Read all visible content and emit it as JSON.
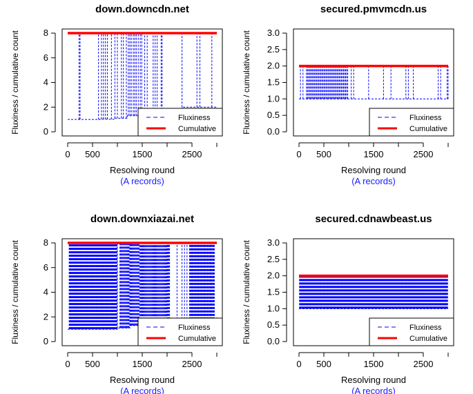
{
  "colors": {
    "fluxiness": "#0000ff",
    "cumulative": "#ff0000",
    "sublabel": "#1a1aff"
  },
  "legend": {
    "fluxiness": "Fluxiness",
    "cumulative": "Cumulative",
    "position": "bottom-right"
  },
  "chart_data": [
    {
      "type": "line",
      "title": "down.downcdn.net",
      "xlabel": "Resolving round",
      "xlabel_sub": "(A records)",
      "ylabel": "Fluxiness / cumulative count",
      "xlim": [
        0,
        3000
      ],
      "ylim": [
        0,
        8
      ],
      "xticks": [
        0,
        500,
        1500,
        2500
      ],
      "xtick_labels": [
        "0",
        "500",
        "1500",
        "2500"
      ],
      "yticks": [
        0,
        2,
        4,
        6,
        8
      ],
      "ytick_labels": [
        "0",
        "2",
        "4",
        "6",
        "8"
      ],
      "series": [
        {
          "name": "Fluxiness",
          "style": "dashed",
          "baseline_steps": [
            [
              0,
              1
            ],
            [
              650,
              1.02
            ],
            [
              950,
              1.1
            ],
            [
              1200,
              1.3
            ],
            [
              1500,
              1.5
            ],
            [
              2000,
              1.8
            ],
            [
              2300,
              2.0
            ],
            [
              3000,
              2.0
            ]
          ],
          "spike_x": [
            230,
            250,
            620,
            680,
            720,
            760,
            800,
            880,
            950,
            1000,
            1080,
            1120,
            1180,
            1220,
            1250,
            1280,
            1320,
            1350,
            1380,
            1420,
            1460,
            1490,
            1550,
            1600,
            1720,
            1760,
            1800,
            1880,
            1900,
            2300,
            2600,
            2660,
            2900
          ],
          "spike_to": 8
        },
        {
          "name": "Cumulative",
          "values_x": [
            0,
            3000
          ],
          "values_y": [
            8,
            8
          ]
        }
      ]
    },
    {
      "type": "line",
      "title": "secured.pmvmcdn.us",
      "xlabel": "Resolving round",
      "xlabel_sub": "(A records)",
      "ylabel": "Fluxiness / cumulative count",
      "xlim": [
        0,
        3000
      ],
      "ylim": [
        0,
        3
      ],
      "xticks": [
        0,
        500,
        1500,
        2500
      ],
      "xtick_labels": [
        "0",
        "500",
        "1500",
        "2500"
      ],
      "yticks": [
        0,
        0.5,
        1,
        1.5,
        2,
        2.5,
        3
      ],
      "ytick_labels": [
        "0.0",
        "0.5",
        "1.0",
        "1.5",
        "2.0",
        "2.5",
        "3.0"
      ],
      "series": [
        {
          "name": "Fluxiness",
          "style": "dashed",
          "baseline_steps": [
            [
              0,
              1
            ],
            [
              3000,
              1
            ]
          ],
          "spike_dense": [
            [
              150,
              980,
              40
            ]
          ],
          "spike_x": [
            30,
            80,
            1050,
            1100,
            1400,
            1700,
            1850,
            2150,
            2200,
            2300,
            2800,
            2850,
            2980,
            3000
          ],
          "spike_to": 2
        },
        {
          "name": "Cumulative",
          "values_x": [
            0,
            3000
          ],
          "values_y": [
            2,
            2
          ]
        }
      ]
    },
    {
      "type": "line",
      "title": "down.downxiazai.net",
      "xlabel": "Resolving round",
      "xlabel_sub": "(A records)",
      "ylabel": "Fluxiness / cumulative count",
      "xlim": [
        0,
        3000
      ],
      "ylim": [
        0,
        8
      ],
      "xticks": [
        0,
        500,
        1500,
        2500
      ],
      "xtick_labels": [
        "0",
        "500",
        "1500",
        "2500"
      ],
      "yticks": [
        0,
        2,
        4,
        6,
        8
      ],
      "ytick_labels": [
        "0",
        "2",
        "4",
        "6",
        "8"
      ],
      "series": [
        {
          "name": "Fluxiness",
          "style": "dashed",
          "baseline_steps": [
            [
              0,
              1
            ],
            [
              1000,
              1.1
            ],
            [
              1250,
              1.3
            ],
            [
              1450,
              1.5
            ],
            [
              2000,
              1.8
            ],
            [
              3000,
              2.0
            ]
          ],
          "spike_dense": [
            [
              30,
              1000,
              90
            ],
            [
              1050,
              2050,
              70
            ],
            [
              2450,
              2950,
              40
            ]
          ],
          "spike_x": [
            2200,
            2300,
            2350,
            2400
          ],
          "spike_to": 8
        },
        {
          "name": "Cumulative",
          "values_x": [
            0,
            3000
          ],
          "values_y": [
            8,
            8
          ]
        }
      ]
    },
    {
      "type": "line",
      "title": "secured.cdnawbeast.us",
      "xlabel": "Resolving round",
      "xlabel_sub": "(A records)",
      "ylabel": "Fluxiness / cumulative count",
      "xlim": [
        0,
        3000
      ],
      "ylim": [
        0,
        3
      ],
      "xticks": [
        0,
        500,
        1500,
        2500
      ],
      "xtick_labels": [
        "0",
        "500",
        "1500",
        "2500"
      ],
      "yticks": [
        0,
        0.5,
        1,
        1.5,
        2,
        2.5,
        3
      ],
      "ytick_labels": [
        "0.0",
        "0.5",
        "1.0",
        "1.5",
        "2.0",
        "2.5",
        "3.0"
      ],
      "series": [
        {
          "name": "Fluxiness",
          "style": "dashed",
          "baseline_steps": [
            [
              0,
              1
            ],
            [
              3000,
              1
            ]
          ],
          "spike_dense": [
            [
              10,
              2990,
              300
            ]
          ],
          "spike_x": [],
          "spike_to": 2
        },
        {
          "name": "Cumulative",
          "values_x": [
            0,
            3000
          ],
          "values_y": [
            2,
            2
          ]
        }
      ]
    }
  ]
}
